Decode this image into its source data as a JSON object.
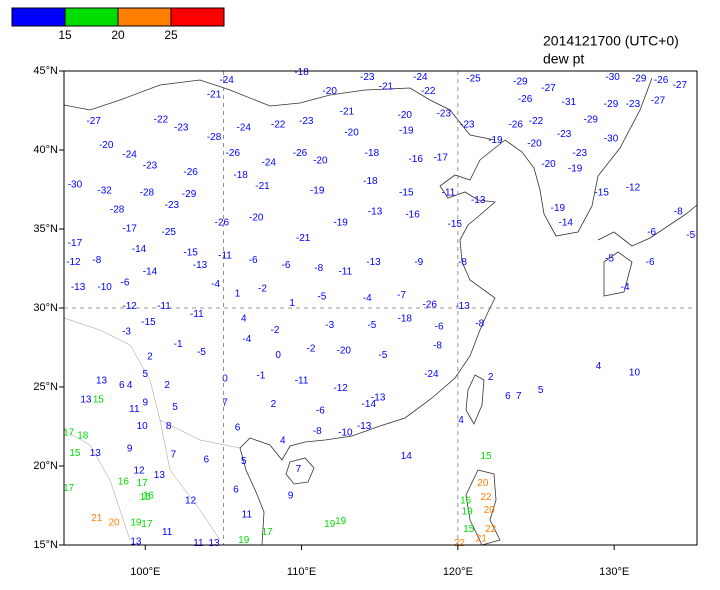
{
  "map": {
    "title": "2014121700 (UTC+0)",
    "subtitle": "dew pt",
    "lonlim": [
      94.8,
      135.3
    ],
    "latlim": [
      15,
      45
    ],
    "xticks": [
      {
        "value": 100,
        "label": "100°E"
      },
      {
        "value": 110,
        "label": "110°E"
      },
      {
        "value": 120,
        "label": "120°E"
      },
      {
        "value": 130,
        "label": "130°E"
      }
    ],
    "yticks": [
      {
        "value": 15,
        "label": "15°N"
      },
      {
        "value": 20,
        "label": "20°N"
      },
      {
        "value": 25,
        "label": "25°N"
      },
      {
        "value": 30,
        "label": "30°N"
      },
      {
        "value": 35,
        "label": "35°N"
      },
      {
        "value": 40,
        "label": "40°N"
      },
      {
        "value": 45,
        "label": "45°N"
      }
    ],
    "dashed_lon": [
      105,
      120
    ],
    "dashed_lat": [
      30
    ],
    "colorbar": {
      "colors": [
        "#0000ff",
        "#00dd00",
        "#ff8000",
        "#ff0000"
      ],
      "ticks": [
        15,
        20,
        25
      ]
    },
    "stations": [
      {
        "lon": 105.2,
        "lat": 44.4,
        "value": -24
      },
      {
        "lon": 104.4,
        "lat": 43.5,
        "value": -21
      },
      {
        "lon": 110.0,
        "lat": 44.9,
        "value": -18
      },
      {
        "lon": 111.8,
        "lat": 43.7,
        "value": -20
      },
      {
        "lon": 114.2,
        "lat": 44.6,
        "value": -23
      },
      {
        "lon": 115.4,
        "lat": 44.0,
        "value": -21
      },
      {
        "lon": 117.6,
        "lat": 44.6,
        "value": -24
      },
      {
        "lon": 118.1,
        "lat": 43.7,
        "value": -22
      },
      {
        "lon": 121.0,
        "lat": 44.5,
        "value": -25
      },
      {
        "lon": 124.0,
        "lat": 44.3,
        "value": -29
      },
      {
        "lon": 96.7,
        "lat": 41.8,
        "value": -27
      },
      {
        "lon": 101.0,
        "lat": 41.9,
        "value": -22
      },
      {
        "lon": 102.3,
        "lat": 41.4,
        "value": -23
      },
      {
        "lon": 104.4,
        "lat": 40.8,
        "value": -28
      },
      {
        "lon": 106.3,
        "lat": 41.4,
        "value": -24
      },
      {
        "lon": 108.5,
        "lat": 41.6,
        "value": -22
      },
      {
        "lon": 110.3,
        "lat": 41.8,
        "value": -23
      },
      {
        "lon": 112.9,
        "lat": 42.4,
        "value": -21
      },
      {
        "lon": 113.2,
        "lat": 41.1,
        "value": -20
      },
      {
        "lon": 116.6,
        "lat": 42.2,
        "value": -20
      },
      {
        "lon": 116.7,
        "lat": 41.2,
        "value": -19
      },
      {
        "lon": 119.1,
        "lat": 42.3,
        "value": -23
      },
      {
        "lon": 120.6,
        "lat": 41.6,
        "value": -23
      },
      {
        "lon": 97.5,
        "lat": 40.3,
        "value": -20
      },
      {
        "lon": 99.0,
        "lat": 39.7,
        "value": -24
      },
      {
        "lon": 105.6,
        "lat": 39.8,
        "value": -26
      },
      {
        "lon": 109.9,
        "lat": 39.8,
        "value": -26
      },
      {
        "lon": 111.2,
        "lat": 39.3,
        "value": -20
      },
      {
        "lon": 114.5,
        "lat": 39.8,
        "value": -18
      },
      {
        "lon": 117.3,
        "lat": 39.4,
        "value": -16
      },
      {
        "lon": 118.9,
        "lat": 39.5,
        "value": -17
      },
      {
        "lon": 122.4,
        "lat": 40.6,
        "value": -19
      },
      {
        "lon": 100.3,
        "lat": 39.0,
        "value": -23
      },
      {
        "lon": 102.9,
        "lat": 38.6,
        "value": -26
      },
      {
        "lon": 106.1,
        "lat": 38.4,
        "value": -18
      },
      {
        "lon": 107.9,
        "lat": 39.2,
        "value": -24
      },
      {
        "lon": 95.5,
        "lat": 37.8,
        "value": -30
      },
      {
        "lon": 97.4,
        "lat": 37.4,
        "value": -32
      },
      {
        "lon": 100.1,
        "lat": 37.3,
        "value": -28
      },
      {
        "lon": 102.8,
        "lat": 37.2,
        "value": -29
      },
      {
        "lon": 98.2,
        "lat": 36.2,
        "value": -28
      },
      {
        "lon": 101.7,
        "lat": 36.5,
        "value": -23
      },
      {
        "lon": 107.5,
        "lat": 37.7,
        "value": -21
      },
      {
        "lon": 111.0,
        "lat": 37.4,
        "value": -19
      },
      {
        "lon": 114.4,
        "lat": 38.0,
        "value": -18
      },
      {
        "lon": 116.7,
        "lat": 37.3,
        "value": -15
      },
      {
        "lon": 119.4,
        "lat": 37.3,
        "value": -11
      },
      {
        "lon": 121.3,
        "lat": 36.8,
        "value": -13
      },
      {
        "lon": 99.0,
        "lat": 35.0,
        "value": -17
      },
      {
        "lon": 101.5,
        "lat": 34.8,
        "value": -25
      },
      {
        "lon": 104.9,
        "lat": 35.4,
        "value": -26
      },
      {
        "lon": 107.1,
        "lat": 35.7,
        "value": -20
      },
      {
        "lon": 110.1,
        "lat": 34.4,
        "value": -21
      },
      {
        "lon": 112.5,
        "lat": 35.4,
        "value": -19
      },
      {
        "lon": 114.7,
        "lat": 36.1,
        "value": -13
      },
      {
        "lon": 117.1,
        "lat": 35.9,
        "value": -16
      },
      {
        "lon": 119.8,
        "lat": 35.3,
        "value": -15
      },
      {
        "lon": 95.5,
        "lat": 34.1,
        "value": -17
      },
      {
        "lon": 99.6,
        "lat": 33.7,
        "value": -14
      },
      {
        "lon": 102.9,
        "lat": 33.5,
        "value": -15
      },
      {
        "lon": 95.4,
        "lat": 32.9,
        "value": -12
      },
      {
        "lon": 96.9,
        "lat": 33.0,
        "value": -8
      },
      {
        "lon": 100.3,
        "lat": 32.3,
        "value": -14
      },
      {
        "lon": 98.7,
        "lat": 31.6,
        "value": -6
      },
      {
        "lon": 95.7,
        "lat": 31.3,
        "value": -13
      },
      {
        "lon": 97.4,
        "lat": 31.3,
        "value": -10
      },
      {
        "lon": 103.5,
        "lat": 32.7,
        "value": -13
      },
      {
        "lon": 105.1,
        "lat": 33.3,
        "value": -11
      },
      {
        "lon": 106.9,
        "lat": 33.0,
        "value": -6
      },
      {
        "lon": 109.0,
        "lat": 32.7,
        "value": -6
      },
      {
        "lon": 111.1,
        "lat": 32.5,
        "value": -8
      },
      {
        "lon": 112.8,
        "lat": 32.3,
        "value": -11
      },
      {
        "lon": 114.6,
        "lat": 32.9,
        "value": -13
      },
      {
        "lon": 117.5,
        "lat": 32.9,
        "value": -9
      },
      {
        "lon": 120.3,
        "lat": 32.9,
        "value": -8
      },
      {
        "lon": 99.0,
        "lat": 30.1,
        "value": -12
      },
      {
        "lon": 101.2,
        "lat": 30.1,
        "value": -11
      },
      {
        "lon": 104.5,
        "lat": 31.5,
        "value": -4
      },
      {
        "lon": 105.9,
        "lat": 30.9,
        "value": 1
      },
      {
        "lon": 107.5,
        "lat": 31.2,
        "value": -2
      },
      {
        "lon": 109.4,
        "lat": 30.3,
        "value": 1
      },
      {
        "lon": 111.3,
        "lat": 30.7,
        "value": -5
      },
      {
        "lon": 114.2,
        "lat": 30.6,
        "value": -4
      },
      {
        "lon": 116.4,
        "lat": 30.8,
        "value": -7
      },
      {
        "lon": 118.2,
        "lat": 30.2,
        "value": -26
      },
      {
        "lon": 120.3,
        "lat": 30.1,
        "value": -13
      },
      {
        "lon": 98.8,
        "lat": 28.5,
        "value": -3
      },
      {
        "lon": 100.2,
        "lat": 29.1,
        "value": -15
      },
      {
        "lon": 103.3,
        "lat": 29.6,
        "value": -11
      },
      {
        "lon": 106.3,
        "lat": 29.3,
        "value": 4
      },
      {
        "lon": 108.3,
        "lat": 28.6,
        "value": -2
      },
      {
        "lon": 111.8,
        "lat": 28.9,
        "value": -3
      },
      {
        "lon": 114.5,
        "lat": 28.9,
        "value": -5
      },
      {
        "lon": 116.6,
        "lat": 29.3,
        "value": -18
      },
      {
        "lon": 118.8,
        "lat": 28.8,
        "value": -6
      },
      {
        "lon": 121.4,
        "lat": 29.0,
        "value": -8
      },
      {
        "lon": 100.3,
        "lat": 26.9,
        "value": 2
      },
      {
        "lon": 102.1,
        "lat": 27.7,
        "value": -1
      },
      {
        "lon": 103.6,
        "lat": 27.2,
        "value": -5
      },
      {
        "lon": 106.5,
        "lat": 28.0,
        "value": -4
      },
      {
        "lon": 108.5,
        "lat": 27.0,
        "value": 0
      },
      {
        "lon": 110.6,
        "lat": 27.4,
        "value": -2
      },
      {
        "lon": 112.7,
        "lat": 27.3,
        "value": -20
      },
      {
        "lon": 115.2,
        "lat": 27.0,
        "value": -5
      },
      {
        "lon": 118.7,
        "lat": 27.6,
        "value": -8
      },
      {
        "lon": 97.2,
        "lat": 25.4,
        "value": 13
      },
      {
        "lon": 98.5,
        "lat": 25.1,
        "value": 6
      },
      {
        "lon": 99.0,
        "lat": 25.1,
        "value": 4
      },
      {
        "lon": 100.0,
        "lat": 25.8,
        "value": 5
      },
      {
        "lon": 101.4,
        "lat": 25.1,
        "value": 2
      },
      {
        "lon": 105.1,
        "lat": 25.5,
        "value": 0
      },
      {
        "lon": 107.4,
        "lat": 25.7,
        "value": -1
      },
      {
        "lon": 110.0,
        "lat": 25.4,
        "value": -11
      },
      {
        "lon": 112.5,
        "lat": 24.9,
        "value": -12
      },
      {
        "lon": 114.9,
        "lat": 24.3,
        "value": -13
      },
      {
        "lon": 118.3,
        "lat": 25.8,
        "value": -24
      },
      {
        "lon": 122.1,
        "lat": 25.6,
        "value": 2
      },
      {
        "lon": 96.2,
        "lat": 24.2,
        "value": 13
      },
      {
        "lon": 97.0,
        "lat": 24.2,
        "value": 15
      },
      {
        "lon": 99.3,
        "lat": 23.6,
        "value": 11
      },
      {
        "lon": 100.0,
        "lat": 24.0,
        "value": 9
      },
      {
        "lon": 101.9,
        "lat": 23.7,
        "value": 5
      },
      {
        "lon": 105.1,
        "lat": 24.0,
        "value": 7
      },
      {
        "lon": 108.2,
        "lat": 23.9,
        "value": 2
      },
      {
        "lon": 111.2,
        "lat": 23.5,
        "value": -6
      },
      {
        "lon": 114.3,
        "lat": 23.9,
        "value": -14
      },
      {
        "lon": 123.2,
        "lat": 24.4,
        "value": 6
      },
      {
        "lon": 123.9,
        "lat": 24.4,
        "value": 7
      },
      {
        "lon": 125.3,
        "lat": 24.8,
        "value": 5
      },
      {
        "lon": 120.2,
        "lat": 22.9,
        "value": 4
      },
      {
        "lon": 95.1,
        "lat": 22.1,
        "value": 17
      },
      {
        "lon": 96.0,
        "lat": 21.9,
        "value": 18
      },
      {
        "lon": 99.8,
        "lat": 22.5,
        "value": 10
      },
      {
        "lon": 101.5,
        "lat": 22.5,
        "value": 8
      },
      {
        "lon": 105.9,
        "lat": 22.4,
        "value": 6
      },
      {
        "lon": 108.8,
        "lat": 21.6,
        "value": 4
      },
      {
        "lon": 111.0,
        "lat": 22.2,
        "value": -8
      },
      {
        "lon": 112.8,
        "lat": 22.1,
        "value": -10
      },
      {
        "lon": 114.0,
        "lat": 22.5,
        "value": -13
      },
      {
        "lon": 95.5,
        "lat": 20.8,
        "value": 15
      },
      {
        "lon": 96.8,
        "lat": 20.8,
        "value": 13
      },
      {
        "lon": 99.0,
        "lat": 21.1,
        "value": 9
      },
      {
        "lon": 101.8,
        "lat": 20.7,
        "value": 7
      },
      {
        "lon": 103.9,
        "lat": 20.4,
        "value": 6
      },
      {
        "lon": 106.3,
        "lat": 20.3,
        "value": 5
      },
      {
        "lon": 109.8,
        "lat": 19.8,
        "value": 7
      },
      {
        "lon": 116.7,
        "lat": 20.6,
        "value": 14
      },
      {
        "lon": 121.8,
        "lat": 20.6,
        "value": 15
      },
      {
        "lon": 99.6,
        "lat": 19.7,
        "value": 12
      },
      {
        "lon": 100.9,
        "lat": 19.4,
        "value": 13
      },
      {
        "lon": 98.6,
        "lat": 19.0,
        "value": 16
      },
      {
        "lon": 99.8,
        "lat": 18.9,
        "value": 17
      },
      {
        "lon": 100.2,
        "lat": 18.1,
        "value": 16
      },
      {
        "lon": 95.1,
        "lat": 18.6,
        "value": 17
      },
      {
        "lon": 100.0,
        "lat": 18.0,
        "value": 15
      },
      {
        "lon": 102.9,
        "lat": 17.8,
        "value": 12
      },
      {
        "lon": 105.8,
        "lat": 18.5,
        "value": 6
      },
      {
        "lon": 109.3,
        "lat": 18.1,
        "value": 9
      },
      {
        "lon": 121.6,
        "lat": 18.9,
        "value": 20
      },
      {
        "lon": 121.8,
        "lat": 18.0,
        "value": 22
      },
      {
        "lon": 120.5,
        "lat": 17.8,
        "value": 16
      },
      {
        "lon": 122.0,
        "lat": 17.2,
        "value": 20
      },
      {
        "lon": 120.6,
        "lat": 17.1,
        "value": 19
      },
      {
        "lon": 96.9,
        "lat": 16.7,
        "value": 21
      },
      {
        "lon": 98.0,
        "lat": 16.4,
        "value": 20
      },
      {
        "lon": 99.4,
        "lat": 16.4,
        "value": 19
      },
      {
        "lon": 100.1,
        "lat": 16.3,
        "value": 17
      },
      {
        "lon": 101.4,
        "lat": 15.8,
        "value": 11
      },
      {
        "lon": 106.5,
        "lat": 16.9,
        "value": 11
      },
      {
        "lon": 107.8,
        "lat": 15.8,
        "value": 17
      },
      {
        "lon": 111.8,
        "lat": 16.3,
        "value": 19
      },
      {
        "lon": 112.5,
        "lat": 16.5,
        "value": 19
      },
      {
        "lon": 120.7,
        "lat": 16.0,
        "value": 15
      },
      {
        "lon": 122.1,
        "lat": 16.0,
        "value": 22
      },
      {
        "lon": 121.5,
        "lat": 15.4,
        "value": 21
      },
      {
        "lon": 120.1,
        "lat": 15.1,
        "value": 22
      },
      {
        "lon": 103.4,
        "lat": 15.1,
        "value": 11
      },
      {
        "lon": 104.4,
        "lat": 15.1,
        "value": 13
      },
      {
        "lon": 106.3,
        "lat": 15.3,
        "value": 19
      },
      {
        "lon": 99.4,
        "lat": 15.2,
        "value": 13
      },
      {
        "lon": 125.8,
        "lat": 43.9,
        "value": -27
      },
      {
        "lon": 124.3,
        "lat": 43.2,
        "value": -26
      },
      {
        "lon": 127.1,
        "lat": 43.0,
        "value": -31
      },
      {
        "lon": 129.9,
        "lat": 44.6,
        "value": -30
      },
      {
        "lon": 131.6,
        "lat": 44.5,
        "value": -29
      },
      {
        "lon": 133.0,
        "lat": 44.4,
        "value": -26
      },
      {
        "lon": 134.2,
        "lat": 44.1,
        "value": -27
      },
      {
        "lon": 129.8,
        "lat": 42.9,
        "value": -29
      },
      {
        "lon": 131.2,
        "lat": 42.9,
        "value": -23
      },
      {
        "lon": 132.8,
        "lat": 43.1,
        "value": -27
      },
      {
        "lon": 123.7,
        "lat": 41.6,
        "value": -26
      },
      {
        "lon": 125.0,
        "lat": 41.8,
        "value": -22
      },
      {
        "lon": 128.5,
        "lat": 41.9,
        "value": -29
      },
      {
        "lon": 126.8,
        "lat": 41.0,
        "value": -23
      },
      {
        "lon": 129.8,
        "lat": 40.7,
        "value": -30
      },
      {
        "lon": 124.9,
        "lat": 40.4,
        "value": -20
      },
      {
        "lon": 127.8,
        "lat": 39.8,
        "value": -23
      },
      {
        "lon": 125.8,
        "lat": 39.1,
        "value": -20
      },
      {
        "lon": 127.5,
        "lat": 38.8,
        "value": -19
      },
      {
        "lon": 131.2,
        "lat": 37.6,
        "value": -12
      },
      {
        "lon": 126.4,
        "lat": 36.3,
        "value": -19
      },
      {
        "lon": 129.2,
        "lat": 37.3,
        "value": -15
      },
      {
        "lon": 126.9,
        "lat": 35.4,
        "value": -14
      },
      {
        "lon": 134.1,
        "lat": 36.1,
        "value": -8
      },
      {
        "lon": 132.4,
        "lat": 34.8,
        "value": -6
      },
      {
        "lon": 134.9,
        "lat": 34.6,
        "value": -5
      },
      {
        "lon": 129.7,
        "lat": 33.1,
        "value": -5
      },
      {
        "lon": 132.3,
        "lat": 32.9,
        "value": -6
      },
      {
        "lon": 130.7,
        "lat": 31.3,
        "value": -4
      },
      {
        "lon": 129.0,
        "lat": 26.3,
        "value": 4
      },
      {
        "lon": 131.3,
        "lat": 25.9,
        "value": 10
      }
    ]
  }
}
